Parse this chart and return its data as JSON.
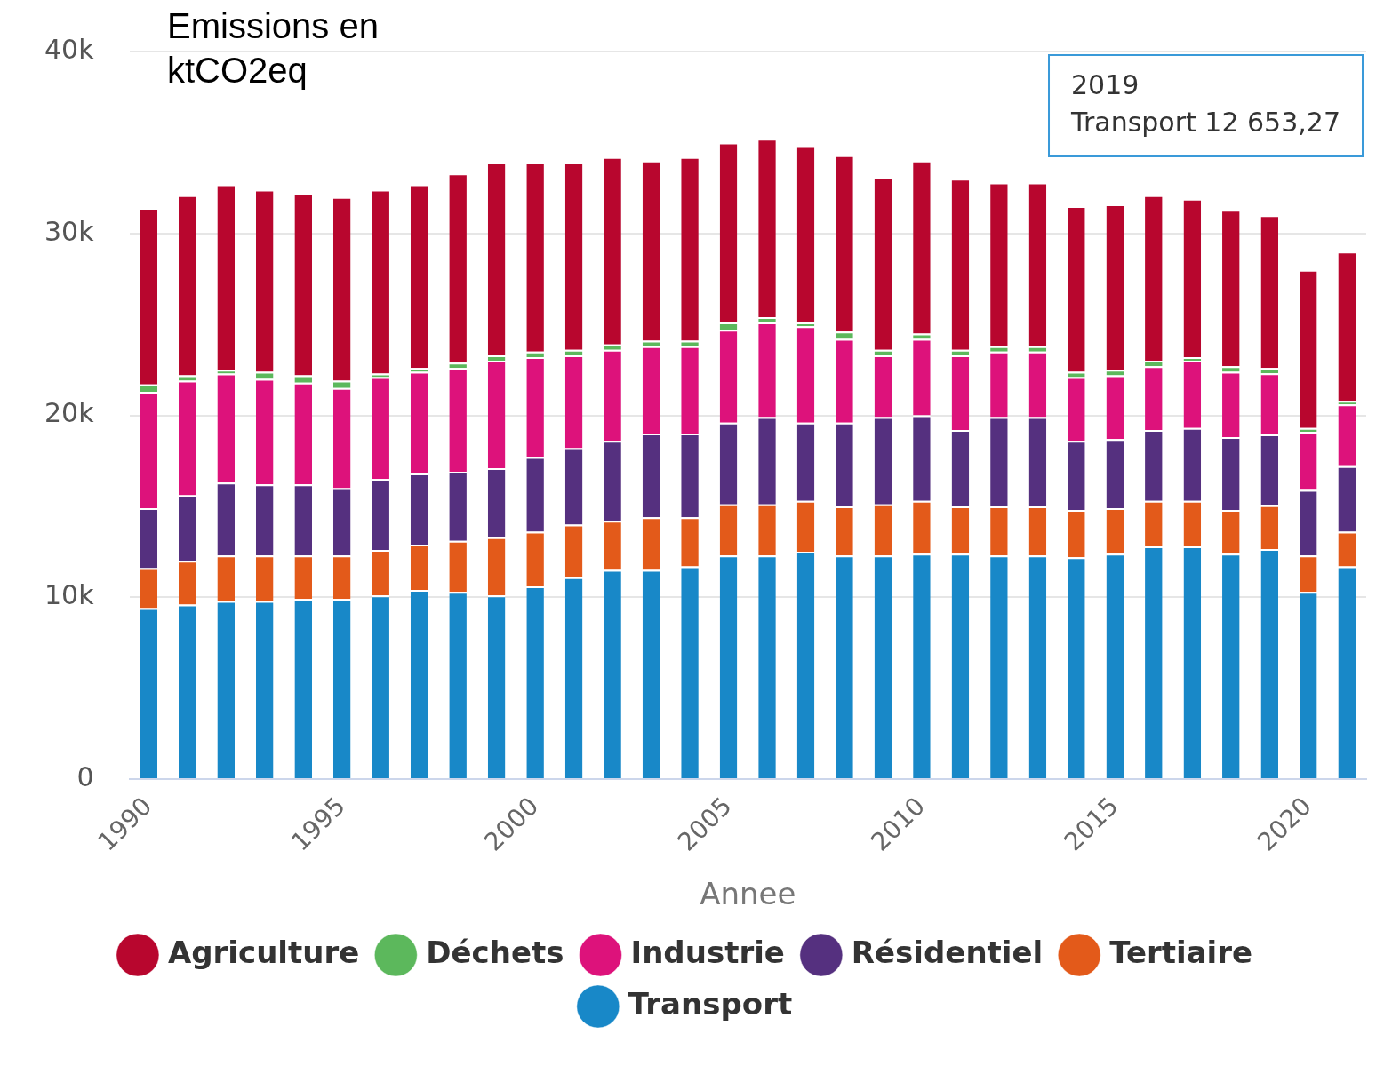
{
  "chart_data": {
    "type": "bar",
    "title": "Emissions en ktCO2eq",
    "xlabel": "Annee",
    "x": [
      1990,
      1991,
      1992,
      1993,
      1994,
      1995,
      1996,
      1997,
      1998,
      1999,
      2000,
      2001,
      2002,
      2003,
      2004,
      2005,
      2006,
      2007,
      2008,
      2009,
      2010,
      2011,
      2012,
      2013,
      2014,
      2015,
      2016,
      2017,
      2018,
      2019,
      2020,
      2021
    ],
    "xlim": [
      1989.5,
      2021.5
    ],
    "xticks": [
      1990,
      1995,
      2000,
      2005,
      2010,
      2015,
      2020
    ],
    "ylim": [
      0,
      40000
    ],
    "yticks": [
      {
        "value": 0,
        "label": "0"
      },
      {
        "value": 10000,
        "label": "10k"
      },
      {
        "value": 20000,
        "label": "20k"
      },
      {
        "value": 30000,
        "label": "30k"
      },
      {
        "value": 40000,
        "label": "40k"
      }
    ],
    "stacked": true,
    "grid": "y",
    "legend": "bottom",
    "series": [
      {
        "name": "Transport",
        "color": "#1888c8",
        "values": [
          9400,
          9600,
          9800,
          9800,
          9900,
          9900,
          10100,
          10400,
          10300,
          10100,
          10600,
          11100,
          11500,
          11500,
          11700,
          12300,
          12300,
          12500,
          12300,
          12300,
          12400,
          12400,
          12300,
          12300,
          12200,
          12400,
          12800,
          12800,
          12400,
          12653.27,
          10300,
          11700
        ]
      },
      {
        "name": "Tertiaire",
        "color": "#e35a1a",
        "values": [
          2200,
          2400,
          2500,
          2500,
          2400,
          2400,
          2500,
          2500,
          2800,
          3200,
          3000,
          2900,
          2700,
          2900,
          2700,
          2800,
          2800,
          2800,
          2700,
          2800,
          2900,
          2600,
          2700,
          2700,
          2600,
          2500,
          2500,
          2500,
          2400,
          2400,
          2000,
          1900
        ]
      },
      {
        "name": "Résidentiel",
        "color": "#55307f",
        "values": [
          3300,
          3600,
          4000,
          3900,
          3900,
          3700,
          3900,
          3900,
          3800,
          3800,
          4100,
          4200,
          4400,
          4600,
          4600,
          4500,
          4800,
          4300,
          4600,
          4800,
          4700,
          4200,
          4900,
          4900,
          3800,
          3800,
          3900,
          4000,
          4000,
          3900,
          3600,
          3600
        ]
      },
      {
        "name": "Industrie",
        "color": "#dd127b",
        "values": [
          6400,
          6300,
          6000,
          5800,
          5600,
          5500,
          5600,
          5600,
          5700,
          5900,
          5500,
          5100,
          5000,
          4800,
          4800,
          5100,
          5200,
          5300,
          4600,
          3400,
          4200,
          4100,
          3600,
          3600,
          3500,
          3500,
          3500,
          3700,
          3600,
          3350,
          3200,
          3400
        ]
      },
      {
        "name": "Déchets",
        "color": "#5cb85c",
        "values": [
          400,
          300,
          200,
          400,
          400,
          400,
          200,
          200,
          300,
          300,
          300,
          300,
          300,
          300,
          300,
          400,
          300,
          200,
          400,
          300,
          300,
          300,
          300,
          300,
          300,
          300,
          300,
          200,
          300,
          300,
          200,
          200
        ]
      },
      {
        "name": "Agriculture",
        "color": "#b8062e",
        "values": [
          9700,
          9900,
          10200,
          10000,
          10000,
          10100,
          10100,
          10100,
          10400,
          10600,
          10400,
          10300,
          10300,
          9900,
          10100,
          9900,
          9800,
          9700,
          9700,
          9500,
          9500,
          9400,
          9000,
          9000,
          9100,
          9100,
          9100,
          8700,
          8600,
          8400,
          8700,
          8200
        ]
      }
    ],
    "annotations": [
      "2019\nTransport 12 653,27"
    ]
  }
}
